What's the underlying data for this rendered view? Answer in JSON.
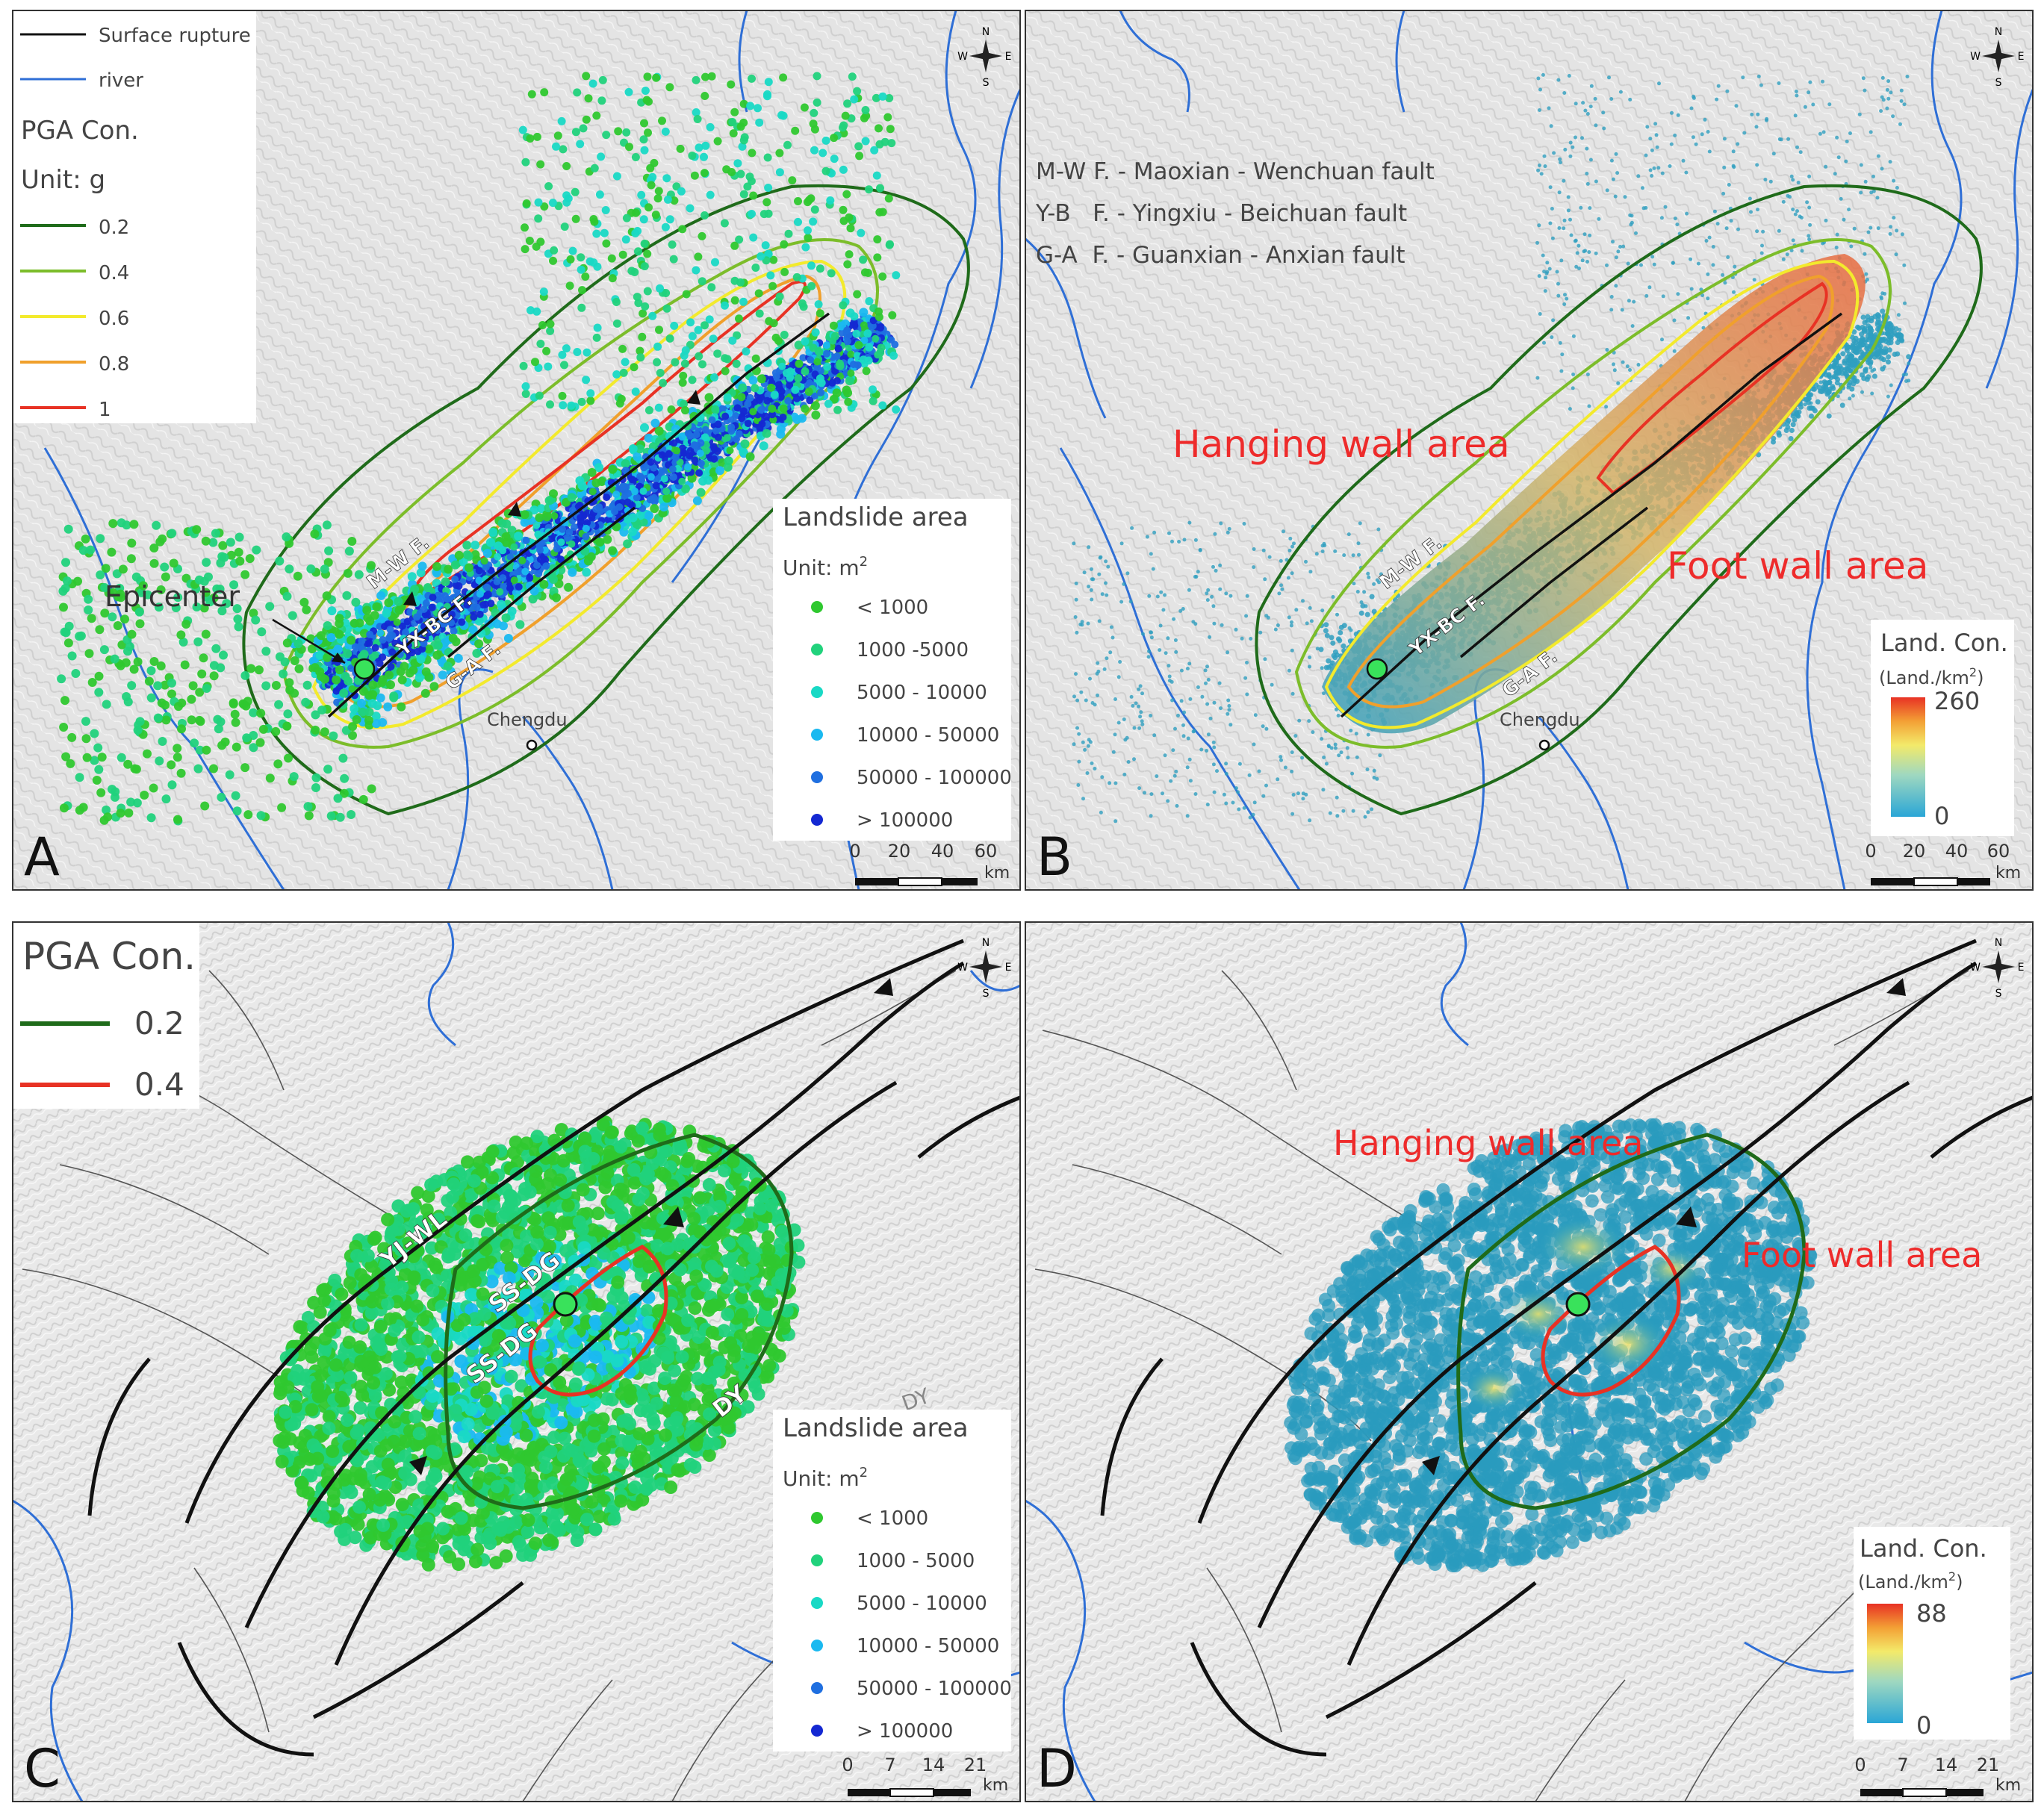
{
  "panels": {
    "A": {
      "letter": "A",
      "legend_lines": [
        {
          "label": "Surface rupture",
          "color": "#111111"
        },
        {
          "label": "river",
          "color": "#2f6fd6"
        }
      ],
      "pga_title": "PGA Con.",
      "pga_unit": "Unit: g",
      "pga_levels": [
        {
          "label": "0.2",
          "color": "#1f6b1a"
        },
        {
          "label": "0.4",
          "color": "#7cbd2a"
        },
        {
          "label": "0.6",
          "color": "#f3ea2c"
        },
        {
          "label": "0.8",
          "color": "#f0a02c"
        },
        {
          "label": "1",
          "color": "#e83224"
        }
      ],
      "landslide_title": "Landslide area",
      "landslide_unit": "Unit: m",
      "landslide_unit_sup": "2",
      "landslide_classes": [
        {
          "label": "< 1000",
          "color": "#2fc82f"
        },
        {
          "label": "1000 -5000",
          "color": "#21d27c"
        },
        {
          "label": "5000 - 10000",
          "color": "#19d9c5"
        },
        {
          "label": "10000 - 50000",
          "color": "#1ab9f0"
        },
        {
          "label": "50000 - 100000",
          "color": "#1f6fe0"
        },
        {
          "label": "> 100000",
          "color": "#1428d2"
        }
      ],
      "faults": [
        "M-W F.",
        "YX-BC F.",
        "G-A F."
      ],
      "epicenter_label": "Epicenter",
      "city_label": "Chengdu",
      "scale_ticks": [
        "0",
        "20",
        "40",
        "60"
      ],
      "scale_unit": "km"
    },
    "B": {
      "letter": "B",
      "fault_notes": [
        "M-W F. - Maoxian - Wenchuan fault",
        "Y-B   F. - Yingxiu - Beichuan fault",
        "G-A  F. - Guanxian - Anxian fault"
      ],
      "hanging_wall": "Hanging wall area",
      "foot_wall": "Foot wall area",
      "faults": [
        "M-W F.",
        "YX-BC F.",
        "G-A F."
      ],
      "city_label": "Chengdu",
      "density_title": "Land. Con.",
      "density_unit": "(Land./km",
      "density_unit_sup": "2",
      "density_unit_close": ")",
      "density_max": "260",
      "density_min": "0",
      "scale_ticks": [
        "0",
        "20",
        "40",
        "60"
      ],
      "scale_unit": "km"
    },
    "C": {
      "letter": "C",
      "pga_title": "PGA Con.",
      "pga_levels": [
        {
          "label": "0.2",
          "color": "#1f6b1a"
        },
        {
          "label": "0.4",
          "color": "#e83224"
        }
      ],
      "faults": [
        "YJ-WL",
        "SS-DG",
        "SS-DG",
        "DY"
      ],
      "partial_label": "DY",
      "landslide_title": "Landslide area",
      "landslide_unit": "Unit: m",
      "landslide_unit_sup": "2",
      "landslide_classes": [
        {
          "label": "< 1000",
          "color": "#2fc82f"
        },
        {
          "label": "1000 - 5000",
          "color": "#21d27c"
        },
        {
          "label": "5000 - 10000",
          "color": "#19d9c5"
        },
        {
          "label": "10000 - 50000",
          "color": "#1ab9f0"
        },
        {
          "label": "50000 - 100000",
          "color": "#1f6fe0"
        },
        {
          "label": "> 100000",
          "color": "#1428d2"
        }
      ],
      "scale_ticks": [
        "0",
        "7",
        "14",
        "21"
      ],
      "scale_unit": "km"
    },
    "D": {
      "letter": "D",
      "hanging_wall": "Hanging wall area",
      "foot_wall": "Foot wall area",
      "density_title": "Land. Con.",
      "density_unit": "(Land./km",
      "density_unit_sup": "2",
      "density_unit_close": ")",
      "density_max": "88",
      "density_min": "0",
      "scale_ticks": [
        "0",
        "7",
        "14",
        "21"
      ],
      "scale_unit": "km"
    }
  },
  "compass": {
    "n": "N",
    "s": "S",
    "e": "E",
    "w": "W"
  },
  "colors": {
    "terrain": "#e6e6e6",
    "river": "#2f6fd6",
    "annotation_red": "#ee2b2b",
    "density_low": "#2aa6c9",
    "density_high": "#e83224"
  }
}
